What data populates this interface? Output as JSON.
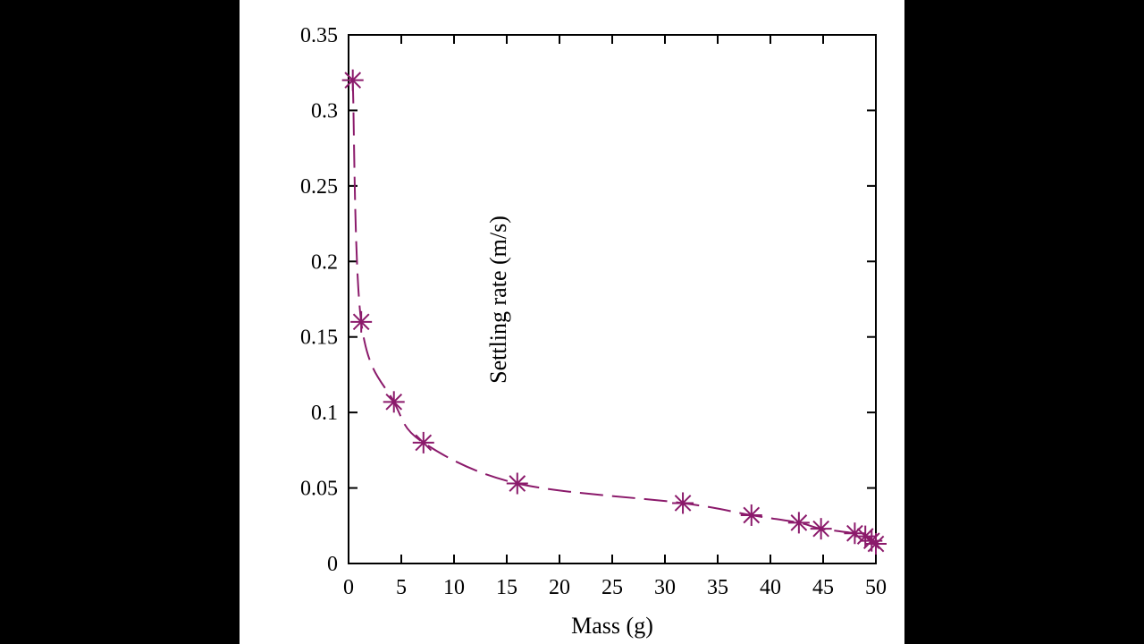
{
  "chart_data": {
    "type": "line",
    "title": "",
    "xlabel": "Mass (g)",
    "ylabel": "Settling rate (m/s)",
    "xlim": [
      0,
      50
    ],
    "ylim": [
      0,
      0.35
    ],
    "xticks": [
      "0",
      "5",
      "10",
      "15",
      "20",
      "25",
      "30",
      "35",
      "40",
      "45",
      "50"
    ],
    "yticks": [
      "0",
      "0.05",
      "0.1",
      "0.15",
      "0.2",
      "0.25",
      "0.3",
      "0.35"
    ],
    "grid": false,
    "legend": "none",
    "line_style": "dashed",
    "marker": "asterisk",
    "series_color": "#8b1a6b",
    "series": [
      {
        "x": [
          0.4,
          1.2,
          4.3,
          7.1,
          16.0,
          31.7,
          38.2,
          42.7,
          44.8,
          48.0,
          49.0,
          49.6,
          50.0
        ],
        "y": [
          0.32,
          0.16,
          0.107,
          0.08,
          0.053,
          0.04,
          0.032,
          0.027,
          0.023,
          0.02,
          0.018,
          0.015,
          0.013
        ]
      }
    ]
  }
}
